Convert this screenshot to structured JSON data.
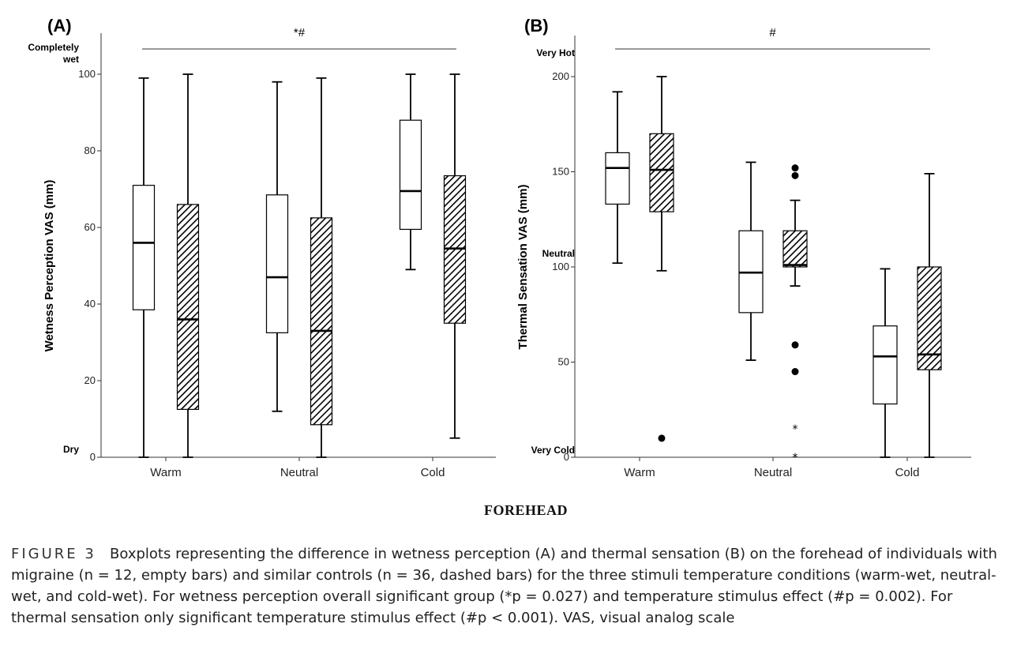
{
  "footer_label": "FOREHEAD",
  "caption": {
    "figure_label": "FIGURE 3",
    "text": "Boxplots representing the difference in wetness perception (A) and thermal sensation (B) on the forehead of individuals with migraine (n = 12, empty bars) and similar controls (n = 36, dashed bars) for the three stimuli temperature conditions (warm-wet, neutral-wet, and cold-wet). For wetness perception overall significant group (*p = 0.027) and temperature stimulus effect (#p = 0.002). For thermal sensation only significant temperature stimulus effect (#p < 0.001). VAS, visual analog scale"
  },
  "chart_data": [
    {
      "type": "boxplot",
      "panel_label": "(A)",
      "ylabel": "Wetness Perception VAS (mm)",
      "ylim": [
        0,
        100
      ],
      "yticks": [
        0,
        20,
        40,
        60,
        80,
        100
      ],
      "anchors": [
        {
          "text": "Completely wet",
          "lines": [
            "Completely",
            "wet"
          ],
          "y": 100
        },
        {
          "text": "Dry",
          "lines": [
            "Dry"
          ],
          "y": 0
        }
      ],
      "significance": "*#",
      "categories": [
        "Warm",
        "Neutral",
        "Cold"
      ],
      "series": [
        {
          "group": "migraine",
          "style": "empty",
          "boxes": [
            {
              "min": 0,
              "q1": 38.5,
              "median": 56,
              "q3": 71,
              "max": 99,
              "outliers": [],
              "extremes": []
            },
            {
              "min": 12,
              "q1": 32.5,
              "median": 47,
              "q3": 68.5,
              "max": 98,
              "outliers": [],
              "extremes": []
            },
            {
              "min": 49,
              "q1": 59.5,
              "median": 69.5,
              "q3": 88,
              "max": 100,
              "outliers": [],
              "extremes": []
            }
          ]
        },
        {
          "group": "controls",
          "style": "dashed",
          "boxes": [
            {
              "min": 0,
              "q1": 12.5,
              "median": 36,
              "q3": 66,
              "max": 100,
              "outliers": [],
              "extremes": []
            },
            {
              "min": 0,
              "q1": 8.5,
              "median": 33,
              "q3": 62.5,
              "max": 99,
              "outliers": [],
              "extremes": []
            },
            {
              "min": 5,
              "q1": 35,
              "median": 54.5,
              "q3": 73.5,
              "max": 100,
              "outliers": [],
              "extremes": []
            }
          ]
        }
      ]
    },
    {
      "type": "boxplot",
      "panel_label": "(B)",
      "ylabel": "Thermal Sensation  VAS (mm)",
      "ylim": [
        0,
        200
      ],
      "yticks": [
        0,
        50,
        100,
        150,
        200
      ],
      "anchors": [
        {
          "text": "Very Hot",
          "lines": [
            "Very Hot"
          ],
          "y": 200
        },
        {
          "text": "Neutral",
          "lines": [
            "Neutral"
          ],
          "y": 100
        },
        {
          "text": "Very Cold",
          "lines": [
            "Very Cold"
          ],
          "y": 0
        }
      ],
      "significance": "#",
      "categories": [
        "Warm",
        "Neutral",
        "Cold"
      ],
      "series": [
        {
          "group": "migraine",
          "style": "empty",
          "boxes": [
            {
              "min": 102,
              "q1": 133,
              "median": 152,
              "q3": 160,
              "max": 192,
              "outliers": [],
              "extremes": []
            },
            {
              "min": 51,
              "q1": 76,
              "median": 97,
              "q3": 119,
              "max": 155,
              "outliers": [],
              "extremes": []
            },
            {
              "min": 0,
              "q1": 28,
              "median": 53,
              "q3": 69,
              "max": 99,
              "outliers": [],
              "extremes": []
            }
          ]
        },
        {
          "group": "controls",
          "style": "dashed",
          "boxes": [
            {
              "min": 98,
              "q1": 129,
              "median": 151,
              "q3": 170,
              "max": 200,
              "outliers": [
                10
              ],
              "extremes": []
            },
            {
              "min": 90,
              "q1": 100,
              "median": 101,
              "q3": 119,
              "max": 135,
              "outliers": [
                152,
                148,
                59,
                45
              ],
              "extremes": [
                15,
                0
              ]
            },
            {
              "min": 0,
              "q1": 46,
              "median": 54,
              "q3": 100,
              "max": 149,
              "outliers": [],
              "extremes": []
            }
          ]
        }
      ]
    }
  ]
}
